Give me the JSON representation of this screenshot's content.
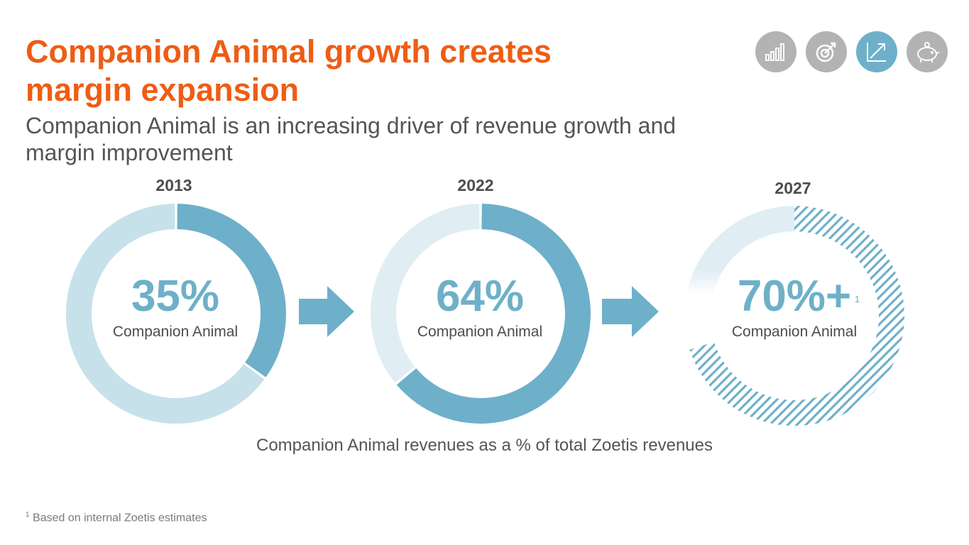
{
  "header": {
    "title": "Companion Animal growth creates margin expansion",
    "subtitle": "Companion Animal is an increasing driver of revenue growth and margin improvement"
  },
  "nav_icons": [
    {
      "icon": "bar-chart-icon",
      "active": false
    },
    {
      "icon": "target-icon",
      "active": false
    },
    {
      "icon": "growth-arrow-icon",
      "active": true
    },
    {
      "icon": "piggy-bank-icon",
      "active": false
    }
  ],
  "chart_data": {
    "type": "pie",
    "title": "Companion Animal revenues as a % of total Zoetis revenues",
    "series": [
      {
        "year": "2013",
        "value": 35,
        "label": "35%",
        "sublabel": "Companion Animal",
        "projected": false
      },
      {
        "year": "2022",
        "value": 64,
        "label": "64%",
        "sublabel": "Companion Animal",
        "projected": false
      },
      {
        "year": "2027",
        "value": 70,
        "label": "70%+",
        "footnote_marker": "1",
        "sublabel": "Companion Animal",
        "projected": true
      }
    ]
  },
  "footnote": {
    "marker": "1",
    "text": "Based on internal Zoetis estimates"
  },
  "colors": {
    "title": "#ee5d14",
    "accent": "#6eb0c9",
    "donut_rest_light": "#c7e1eb",
    "donut_rest_lighter": "#e0eef4",
    "icon_inactive": "#b3b3b3"
  }
}
